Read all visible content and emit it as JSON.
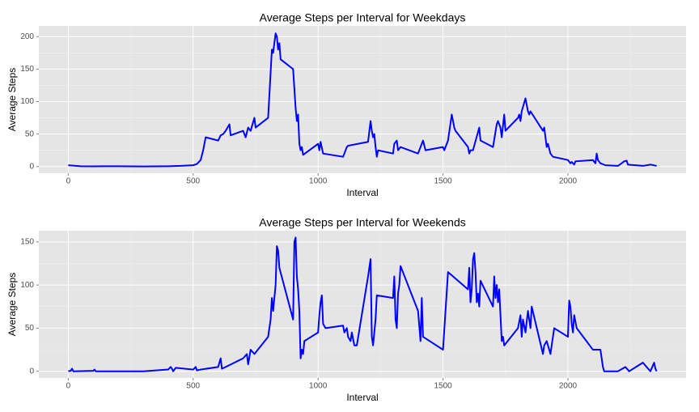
{
  "chart_data": [
    {
      "type": "line",
      "title": "Average Steps per Interval for Weekdays",
      "x_label": "Interval",
      "y_label": "Average Steps",
      "color": "#0000ff",
      "grid": true,
      "xlim": [
        -117.75,
        2472.75
      ],
      "xticks": [
        0,
        500,
        1000,
        1500,
        2000
      ],
      "ylim": [
        -10.3,
        216.5
      ],
      "yticks": [
        0,
        50,
        100,
        150,
        200
      ],
      "x": [
        0,
        50,
        100,
        200,
        300,
        400,
        450,
        500,
        515,
        530,
        540,
        550,
        600,
        610,
        620,
        630,
        645,
        650,
        700,
        710,
        720,
        730,
        745,
        750,
        800,
        815,
        820,
        830,
        835,
        840,
        845,
        850,
        900,
        910,
        915,
        920,
        925,
        930,
        935,
        940,
        1000,
        1005,
        1010,
        1020,
        1100,
        1105,
        1115,
        1120,
        1200,
        1210,
        1215,
        1220,
        1225,
        1230,
        1235,
        1240,
        1300,
        1305,
        1315,
        1320,
        1330,
        1400,
        1420,
        1430,
        1500,
        1505,
        1520,
        1535,
        1540,
        1545,
        1550,
        1600,
        1605,
        1610,
        1620,
        1645,
        1650,
        1700,
        1715,
        1720,
        1730,
        1735,
        1745,
        1750,
        1800,
        1805,
        1810,
        1815,
        1830,
        1835,
        1840,
        1845,
        1850,
        1900,
        1905,
        1915,
        1920,
        1930,
        1940,
        2000,
        2010,
        2015,
        2025,
        2030,
        2100,
        2110,
        2115,
        2120,
        2130,
        2150,
        2200,
        2215,
        2225,
        2235,
        2240,
        2300,
        2330,
        2355
      ],
      "values": [
        2,
        0.5,
        0.3,
        0.5,
        0.2,
        0.5,
        1,
        2,
        4,
        10,
        25,
        45,
        40,
        48,
        50,
        55,
        65,
        48,
        55,
        45,
        60,
        55,
        75,
        60,
        75,
        180,
        175,
        205,
        200,
        180,
        190,
        165,
        150,
        90,
        70,
        80,
        35,
        25,
        30,
        18,
        35,
        25,
        38,
        20,
        15,
        20,
        30,
        32,
        38,
        70,
        55,
        45,
        50,
        30,
        15,
        25,
        20,
        35,
        40,
        25,
        30,
        20,
        40,
        25,
        30,
        25,
        40,
        80,
        70,
        60,
        55,
        30,
        20,
        25,
        25,
        60,
        40,
        30,
        65,
        70,
        60,
        45,
        80,
        55,
        75,
        80,
        70,
        85,
        105,
        95,
        85,
        80,
        85,
        55,
        60,
        30,
        35,
        20,
        15,
        10,
        5,
        7,
        3,
        8,
        10,
        5,
        20,
        10,
        5,
        2,
        1,
        5,
        8,
        9,
        3,
        1,
        3,
        1
      ]
    },
    {
      "type": "line",
      "title": "Average Steps per Interval for Weekends",
      "x_label": "Interval",
      "y_label": "Average Steps",
      "color": "#0000ff",
      "grid": true,
      "xlim": [
        -117.75,
        2472.75
      ],
      "xticks": [
        0,
        500,
        1000,
        1500,
        2000
      ],
      "ylim": [
        -7.8,
        163
      ],
      "yticks": [
        0,
        50,
        100,
        150
      ],
      "x": [
        0,
        10,
        15,
        20,
        100,
        105,
        110,
        200,
        300,
        400,
        410,
        415,
        420,
        430,
        500,
        510,
        515,
        530,
        600,
        610,
        615,
        630,
        700,
        715,
        720,
        730,
        745,
        800,
        810,
        815,
        820,
        830,
        835,
        840,
        845,
        900,
        905,
        910,
        915,
        920,
        925,
        930,
        935,
        940,
        945,
        1000,
        1005,
        1010,
        1015,
        1020,
        1030,
        1100,
        1105,
        1115,
        1120,
        1130,
        1135,
        1145,
        1155,
        1200,
        1205,
        1210,
        1215,
        1220,
        1230,
        1235,
        1300,
        1305,
        1310,
        1315,
        1320,
        1325,
        1330,
        1400,
        1410,
        1415,
        1420,
        1500,
        1510,
        1520,
        1600,
        1605,
        1610,
        1615,
        1620,
        1625,
        1630,
        1635,
        1640,
        1645,
        1650,
        1700,
        1705,
        1710,
        1715,
        1720,
        1725,
        1735,
        1740,
        1745,
        1800,
        1810,
        1815,
        1820,
        1830,
        1840,
        1850,
        1855,
        1900,
        1905,
        1915,
        1930,
        1945,
        2000,
        2005,
        2010,
        2015,
        2020,
        2025,
        2035,
        2100,
        2130,
        2135,
        2140,
        2145,
        2200,
        2230,
        2245,
        2300,
        2315,
        2330,
        2345,
        2350,
        2355
      ],
      "values": [
        0.2,
        0.5,
        3,
        0,
        0.5,
        2,
        0,
        0,
        0,
        2,
        5,
        3,
        0,
        4,
        2,
        5,
        1,
        2,
        5,
        15,
        3,
        5,
        15,
        20,
        8,
        25,
        20,
        40,
        60,
        85,
        70,
        100,
        145,
        140,
        120,
        60,
        150,
        155,
        110,
        95,
        70,
        15,
        25,
        20,
        35,
        45,
        65,
        80,
        88,
        55,
        50,
        53,
        45,
        50,
        40,
        35,
        45,
        30,
        30,
        110,
        120,
        130,
        40,
        30,
        60,
        88,
        85,
        110,
        60,
        50,
        90,
        100,
        122,
        70,
        35,
        85,
        40,
        25,
        70,
        115,
        95,
        120,
        80,
        95,
        130,
        137,
        115,
        80,
        90,
        75,
        105,
        75,
        110,
        85,
        100,
        80,
        95,
        35,
        40,
        30,
        50,
        65,
        40,
        60,
        45,
        70,
        50,
        75,
        20,
        30,
        35,
        20,
        50,
        40,
        82,
        75,
        55,
        45,
        65,
        50,
        25,
        25,
        15,
        5,
        0,
        0,
        5,
        0,
        10,
        5,
        0,
        10,
        3,
        0
      ]
    }
  ]
}
